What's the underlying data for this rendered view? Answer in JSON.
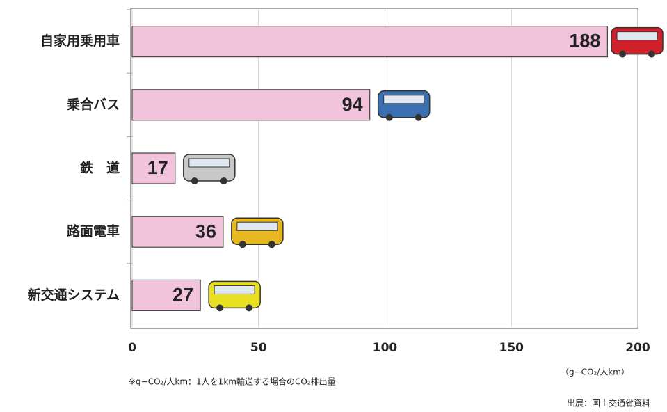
{
  "chart_data": {
    "type": "bar",
    "orientation": "horizontal",
    "categories": [
      "自家用乗用車",
      "乗合バス",
      "鉄　道",
      "路面電車",
      "新交通システム"
    ],
    "values": [
      188,
      94,
      17,
      36,
      27
    ],
    "color": "#f2c4dc",
    "xlim": [
      0,
      200
    ],
    "xticks": [
      0,
      50,
      100,
      150,
      200
    ],
    "grid": true,
    "x_unit_label": "（g−CO₂/人km）",
    "note": "※g−CO₂/人km：1人を1km輸送する場合のCO₂排出量",
    "source": "出展：国土交通省資料"
  }
}
